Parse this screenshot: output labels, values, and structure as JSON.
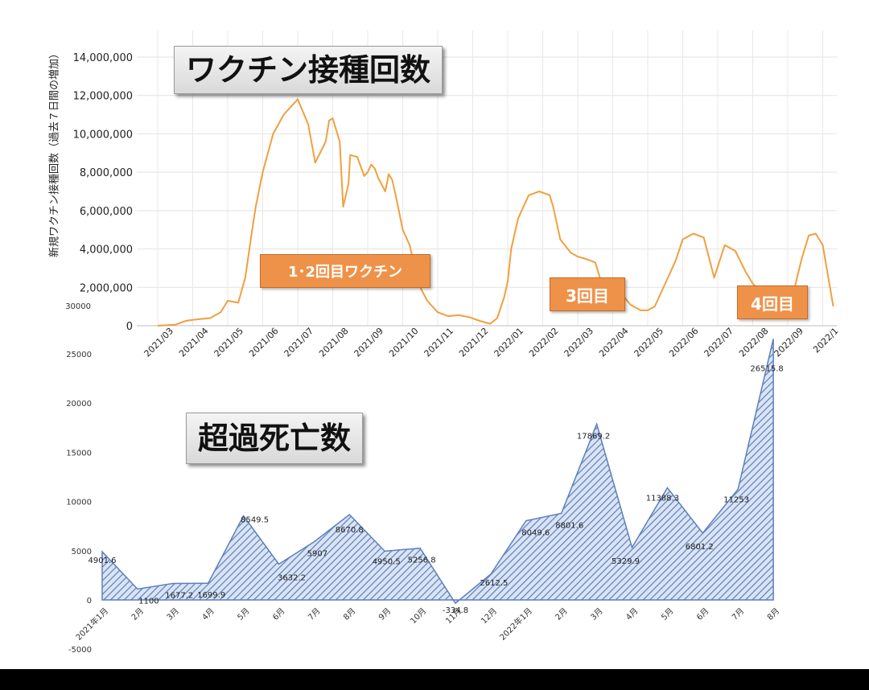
{
  "chart_data": [
    {
      "type": "line",
      "title": "ワクチン接種回数",
      "ylabel": "新規ワクチン接種回数（過去７日間の増加）",
      "ylim": [
        0,
        14000000
      ],
      "y_ticks": [
        "14,000,000",
        "12,000,000",
        "10,000,000",
        "8,000,000",
        "6,000,000",
        "4,000,000",
        "2,000,000",
        "0"
      ],
      "y_tick_values": [
        14000000,
        12000000,
        10000000,
        8000000,
        6000000,
        4000000,
        2000000,
        0
      ],
      "extra_label": "30000",
      "x_ticks": [
        "2021/03",
        "2021/04",
        "2021/05",
        "2021/06",
        "2021/07",
        "2021/08",
        "2021/09",
        "2021/10",
        "2021/11",
        "2021/12",
        "2022/01",
        "2022/02",
        "2022/03",
        "2022/04",
        "2022/05",
        "2022/06",
        "2022/07",
        "2022/08",
        "2022/09",
        "2022/1"
      ],
      "xlim": [
        0,
        19.3
      ],
      "line_color": "#f0a040",
      "grid": true,
      "annotations": [
        "1･2回目ワクチン",
        "3回目",
        "4回目"
      ],
      "series": [
        {
          "x": [
            0,
            0.5,
            0.8,
            1.0,
            1.5,
            1.8,
            2.0,
            2.3,
            2.5,
            2.7,
            2.8,
            3.0,
            3.3,
            3.6,
            4.0,
            4.3,
            4.5,
            4.8,
            4.9,
            5.0,
            5.2,
            5.3,
            5.45,
            5.5,
            5.7,
            5.8,
            5.9,
            6.0,
            6.1,
            6.2,
            6.3,
            6.5,
            6.6,
            6.7,
            6.8,
            7.0,
            7.2,
            7.35,
            7.5,
            7.7,
            8.0,
            8.3,
            8.6,
            8.9,
            9.2,
            9.5,
            9.7,
            9.9,
            10.0,
            10.1,
            10.3,
            10.6,
            10.9,
            11.2,
            11.3,
            11.5,
            11.8,
            12.0,
            12.2,
            12.5,
            12.8,
            13.0,
            13.2,
            13.5,
            13.8,
            14.0,
            14.2,
            14.5,
            14.8,
            15.0,
            15.3,
            15.6,
            15.9,
            16.2,
            16.5,
            16.8,
            17.0,
            17.2,
            17.5,
            17.7,
            17.85,
            18.0,
            18.2,
            18.4,
            18.6,
            18.8,
            19.0,
            19.3
          ],
          "y": [
            0,
            50000,
            250000,
            300000,
            400000,
            700000,
            1300000,
            1200000,
            2500000,
            5000000,
            6200000,
            8000000,
            10000000,
            11000000,
            11800000,
            10500000,
            8500000,
            9600000,
            10700000,
            10800000,
            9600000,
            6200000,
            7400000,
            8900000,
            8800000,
            8300000,
            7800000,
            8000000,
            8400000,
            8200000,
            7700000,
            7000000,
            7900000,
            7600000,
            6800000,
            5000000,
            4200000,
            3000000,
            2000000,
            1300000,
            700000,
            500000,
            550000,
            450000,
            250000,
            100000,
            400000,
            1500000,
            2300000,
            4000000,
            5600000,
            6800000,
            7000000,
            6800000,
            6200000,
            4500000,
            3800000,
            3600000,
            3500000,
            3300000,
            1500000,
            2200000,
            1800000,
            1100000,
            800000,
            800000,
            1000000,
            2200000,
            3400000,
            4500000,
            4800000,
            4600000,
            2500000,
            4200000,
            3900000,
            2800000,
            2200000,
            1800000,
            1300000,
            1000000,
            900000,
            1000000,
            2000000,
            3500000,
            4700000,
            4800000,
            4200000,
            1000000
          ]
        }
      ]
    },
    {
      "type": "area",
      "title": "超過死亡数",
      "ylim": [
        -5000,
        25000
      ],
      "y_ticks": [
        "25000",
        "20000",
        "15000",
        "10000",
        "5000",
        "0",
        "-5000"
      ],
      "y_tick_values": [
        25000,
        20000,
        15000,
        10000,
        5000,
        0,
        -5000
      ],
      "fill_color": "#5b7fbf",
      "categories": [
        "2021年1月",
        "2月",
        "3月",
        "4月",
        "5月",
        "6月",
        "7月",
        "8月",
        "9月",
        "10月",
        "11月",
        "12月",
        "2022年1月",
        "2月",
        "3月",
        "4月",
        "5月",
        "6月",
        "7月",
        "8月"
      ],
      "values": [
        4901.6,
        1100,
        1677.2,
        1699.9,
        8549.5,
        3632.2,
        5907,
        8670.8,
        4950.5,
        5256.8,
        -334.8,
        2612.5,
        8049.6,
        8801.6,
        17869.2,
        5329.9,
        11388.3,
        6801.2,
        11253,
        26515.8
      ],
      "value_labels": [
        "4901.6",
        "1100",
        "1677.2",
        "1699.9",
        "8549.5",
        "3632.2",
        "5907",
        "8670.8",
        "4950.5",
        "5256.8",
        "-334.8",
        "2612.5",
        "8049.6",
        "8801.6",
        "17869.2",
        "5329.9",
        "11388.3",
        "6801.2",
        "11253",
        "26515.8"
      ]
    }
  ],
  "badges": {
    "b1": "1･2回目ワクチン",
    "b2": "3回目",
    "b3": "4回目"
  }
}
